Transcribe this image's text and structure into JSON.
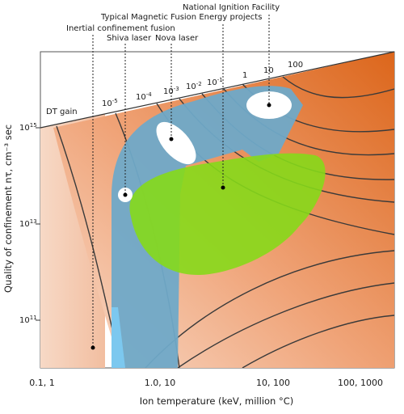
{
  "labels": {
    "nif": "National Ignition Facility",
    "mfe": "Typical Magnetic Fusion Energy projects",
    "icf": "Inertial confinement fusion",
    "shiva": "Shiva laser",
    "nova": "Nova laser",
    "dt_gain": "DT gain"
  },
  "gain_values": [
    "10",
    "10",
    "10",
    "10",
    "10",
    "1",
    "10",
    "100"
  ],
  "gain_exponents": [
    "-5",
    "-4",
    "-3",
    "-2",
    "-1",
    "",
    "",
    ""
  ],
  "x_axis": {
    "title": "Ion temperature (keV, million °C)",
    "ticks": [
      "0.1, 1",
      "1.0, 10",
      "10, 100",
      "100, 1000"
    ]
  },
  "y_axis": {
    "title": "Quality of confinement nτ, cm⁻³ sec",
    "ticks": [
      {
        "base": "10",
        "exp": "15"
      },
      {
        "base": "10",
        "exp": "13"
      },
      {
        "base": "10",
        "exp": "11"
      }
    ]
  },
  "colors": {
    "mfe_region": "#6fa9c8",
    "icf_region": "#86d91a",
    "nif_region": "#7cc8ef",
    "gain_gradient_low": "#f6d2bc",
    "gain_gradient_high": "#de6a1e",
    "contour": "#3a3a3a"
  }
}
